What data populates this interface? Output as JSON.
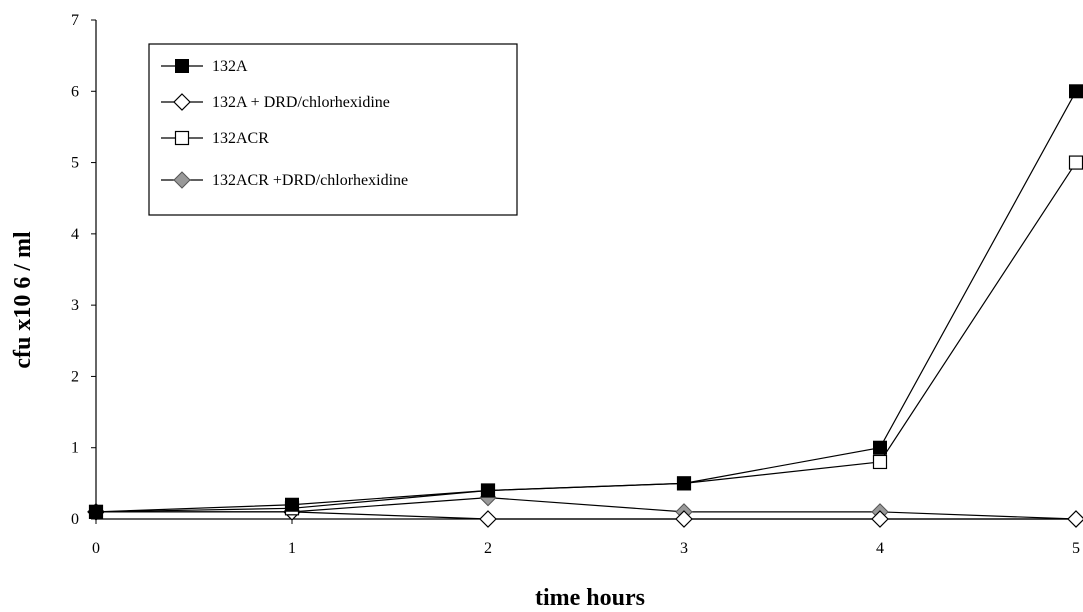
{
  "chart_data": {
    "type": "line",
    "xlabel": "time hours",
    "ylabel": "cfu x10 6 / ml",
    "x": [
      0,
      1,
      2,
      3,
      4,
      5
    ],
    "xlim": [
      0,
      5
    ],
    "ylim": [
      0,
      7
    ],
    "xticks": [
      "0",
      "1",
      "2",
      "3",
      "4",
      "5"
    ],
    "yticks": [
      "0",
      "1",
      "2",
      "3",
      "4",
      "5",
      "6",
      "7"
    ],
    "grid": false,
    "legend_position": "top-left",
    "series": [
      {
        "name": "132A",
        "marker": "filled-square",
        "color": "#000000",
        "values": [
          0.1,
          0.2,
          0.4,
          0.5,
          1.0,
          6.0
        ]
      },
      {
        "name": "132A + DRD/chlorhexidine",
        "marker": "open-diamond",
        "color": "#000000",
        "values": [
          0.1,
          0.1,
          0.0,
          0.0,
          0.0,
          0.0
        ]
      },
      {
        "name": "132ACR",
        "marker": "open-square",
        "color": "#000000",
        "values": [
          0.1,
          0.15,
          0.4,
          0.5,
          0.8,
          5.0
        ]
      },
      {
        "name": "132ACR +DRD/chlorhexidine",
        "marker": "gray-diamond",
        "color": "#999999",
        "values": [
          0.1,
          0.1,
          0.3,
          0.1,
          0.1,
          0.0
        ]
      }
    ]
  }
}
